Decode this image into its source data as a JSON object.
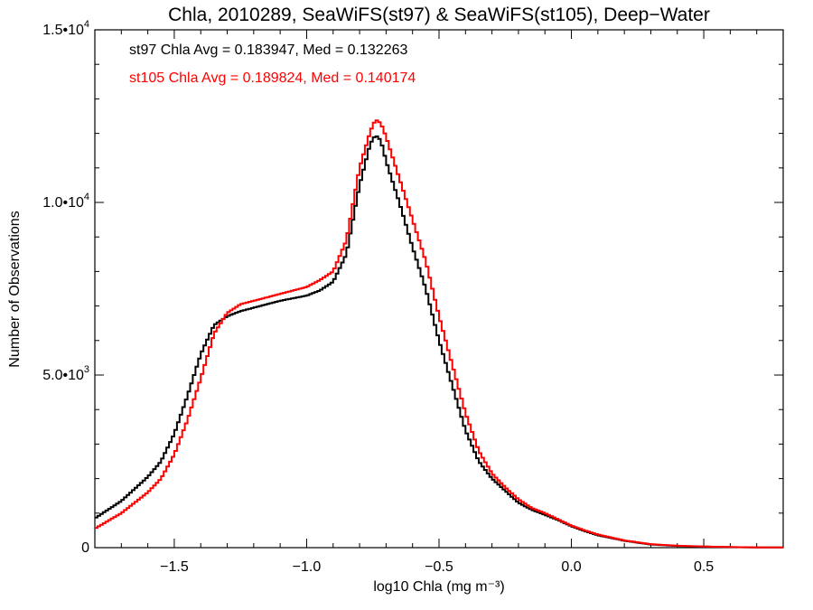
{
  "chart_data": {
    "type": "line",
    "title": "Chla, 2010289, SeaWiFS(st97) & SeaWiFS(st105), Deep−Water",
    "xlabel": "log10 Chla (mg m⁻³)",
    "ylabel": "Number of Observations",
    "xlim": [
      -1.8,
      0.8
    ],
    "ylim": [
      0,
      15000
    ],
    "x_ticks": [
      -1.5,
      -1.0,
      -0.5,
      0.0,
      0.5
    ],
    "x_tick_labels": [
      "−1.5",
      "−1.0",
      "−0.5",
      "0.0",
      "0.5"
    ],
    "y_ticks": [
      0,
      5000,
      10000,
      15000
    ],
    "y_tick_labels": [
      {
        "base": "0",
        "exp": ""
      },
      {
        "base": "5.0•10",
        "exp": "3"
      },
      {
        "base": "1.0•10",
        "exp": "4"
      },
      {
        "base": "1.5•10",
        "exp": "4"
      }
    ],
    "grid": false,
    "legend": [
      {
        "text": "st97 Chla Avg = 0.183947, Med = 0.132263",
        "color": "#000000"
      },
      {
        "text": "st105 Chla Avg = 0.189824, Med = 0.140174",
        "color": "#ff0000"
      }
    ],
    "series": [
      {
        "color": "#000000",
        "points": [
          [
            -1.8,
            850
          ],
          [
            -1.7,
            1350
          ],
          [
            -1.6,
            2050
          ],
          [
            -1.55,
            2500
          ],
          [
            -1.5,
            3300
          ],
          [
            -1.45,
            4400
          ],
          [
            -1.4,
            5600
          ],
          [
            -1.35,
            6450
          ],
          [
            -1.3,
            6700
          ],
          [
            -1.25,
            6850
          ],
          [
            -1.2,
            6950
          ],
          [
            -1.1,
            7150
          ],
          [
            -1.0,
            7300
          ],
          [
            -0.95,
            7450
          ],
          [
            -0.9,
            7700
          ],
          [
            -0.85,
            8500
          ],
          [
            -0.8,
            10500
          ],
          [
            -0.76,
            11700
          ],
          [
            -0.74,
            11950
          ],
          [
            -0.72,
            11800
          ],
          [
            -0.7,
            11200
          ],
          [
            -0.65,
            10000
          ],
          [
            -0.6,
            8700
          ],
          [
            -0.55,
            7500
          ],
          [
            -0.5,
            6000
          ],
          [
            -0.45,
            4700
          ],
          [
            -0.4,
            3400
          ],
          [
            -0.35,
            2500
          ],
          [
            -0.3,
            2000
          ],
          [
            -0.25,
            1650
          ],
          [
            -0.2,
            1300
          ],
          [
            -0.15,
            1100
          ],
          [
            -0.1,
            950
          ],
          [
            -0.05,
            800
          ],
          [
            0.0,
            620
          ],
          [
            0.05,
            480
          ],
          [
            0.1,
            360
          ],
          [
            0.2,
            200
          ],
          [
            0.3,
            90
          ],
          [
            0.4,
            50
          ],
          [
            0.5,
            30
          ],
          [
            0.6,
            15
          ],
          [
            0.7,
            8
          ],
          [
            0.8,
            4
          ]
        ]
      },
      {
        "color": "#ff0000",
        "points": [
          [
            -1.8,
            550
          ],
          [
            -1.7,
            1000
          ],
          [
            -1.6,
            1600
          ],
          [
            -1.55,
            2000
          ],
          [
            -1.5,
            2700
          ],
          [
            -1.45,
            3700
          ],
          [
            -1.4,
            4900
          ],
          [
            -1.35,
            6200
          ],
          [
            -1.3,
            6800
          ],
          [
            -1.25,
            7050
          ],
          [
            -1.2,
            7150
          ],
          [
            -1.1,
            7350
          ],
          [
            -1.0,
            7550
          ],
          [
            -0.95,
            7750
          ],
          [
            -0.9,
            8000
          ],
          [
            -0.85,
            8900
          ],
          [
            -0.8,
            11000
          ],
          [
            -0.76,
            12050
          ],
          [
            -0.74,
            12400
          ],
          [
            -0.72,
            12300
          ],
          [
            -0.7,
            11900
          ],
          [
            -0.65,
            10700
          ],
          [
            -0.6,
            9500
          ],
          [
            -0.55,
            8300
          ],
          [
            -0.5,
            6700
          ],
          [
            -0.45,
            5300
          ],
          [
            -0.4,
            3900
          ],
          [
            -0.35,
            2800
          ],
          [
            -0.3,
            2150
          ],
          [
            -0.25,
            1750
          ],
          [
            -0.2,
            1400
          ],
          [
            -0.15,
            1150
          ],
          [
            -0.1,
            1000
          ],
          [
            -0.05,
            820
          ],
          [
            0.0,
            640
          ],
          [
            0.05,
            500
          ],
          [
            0.1,
            380
          ],
          [
            0.2,
            210
          ],
          [
            0.3,
            100
          ],
          [
            0.4,
            55
          ],
          [
            0.5,
            33
          ],
          [
            0.6,
            17
          ],
          [
            0.7,
            9
          ],
          [
            0.8,
            5
          ]
        ]
      }
    ]
  }
}
